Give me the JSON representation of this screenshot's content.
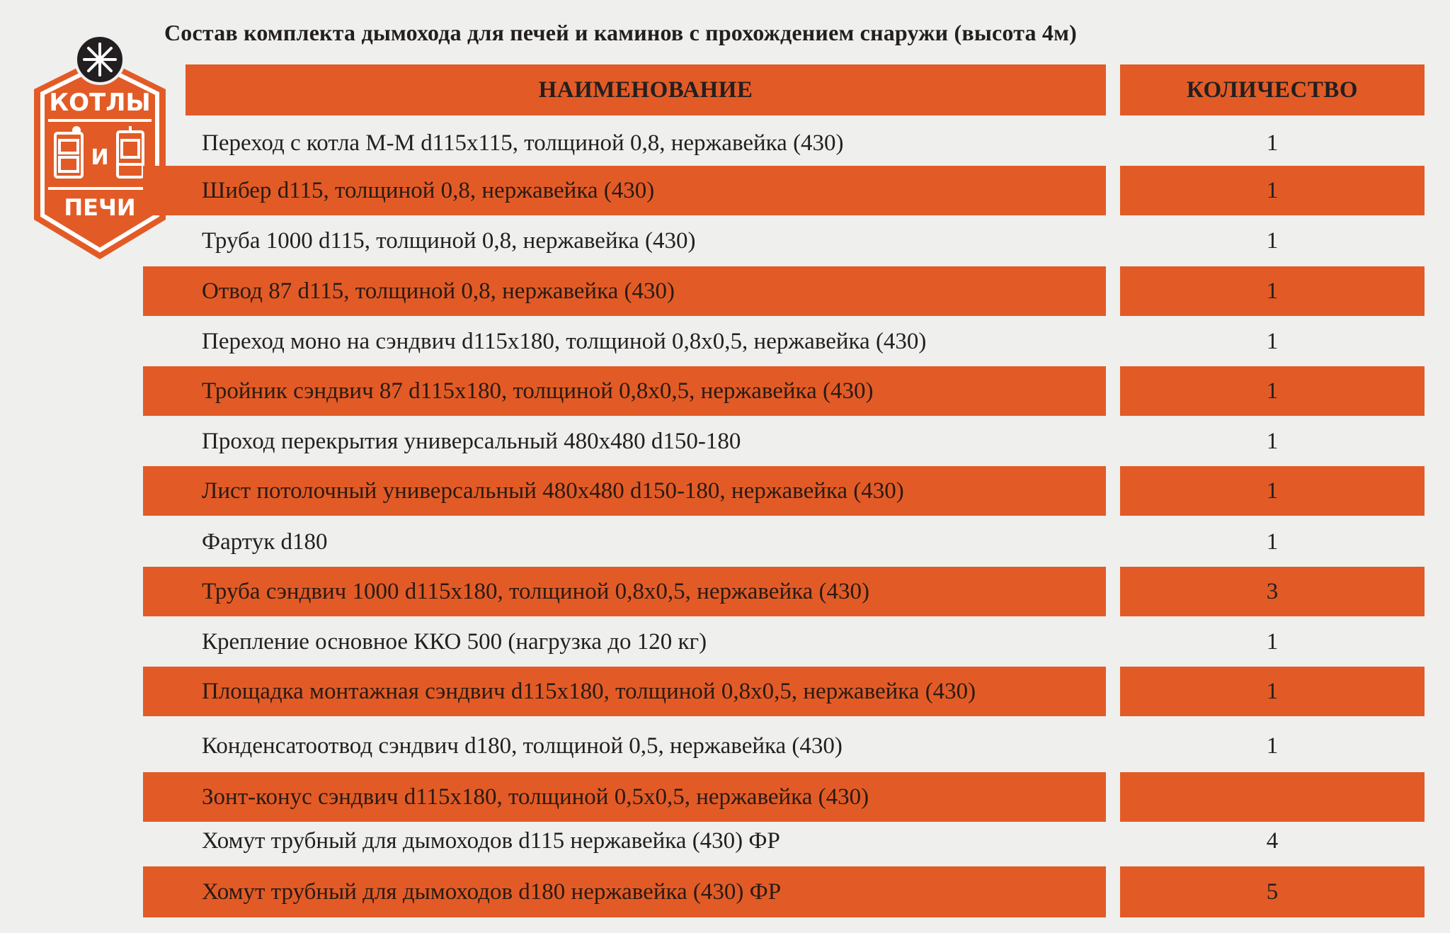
{
  "logo": {
    "top_text": "КОТЛЫ",
    "middle_text": "И",
    "bottom_text": "ПЕЧИ",
    "colors": {
      "border": "#e25b26",
      "inner": "#e8602a",
      "icon": "#ffffff",
      "badge": "#231f20"
    }
  },
  "title": "Состав комплекта дымохода для печей и каминов с прохождением снаружи (высота 4м)",
  "table": {
    "headers": {
      "name": "НАИМЕНОВАНИЕ",
      "qty": "КОЛИЧЕСТВО"
    },
    "rows": [
      {
        "name": "Переход с котла М-М d115х115, толщиной 0,8, нержавейка (430)",
        "qty": "1"
      },
      {
        "name": "Шибер d115, толщиной 0,8, нержавейка (430)",
        "qty": "1"
      },
      {
        "name": "Труба 1000 d115, толщиной 0,8, нержавейка (430)",
        "qty": "1"
      },
      {
        "name": "Отвод 87 d115, толщиной 0,8, нержавейка (430)",
        "qty": "1"
      },
      {
        "name": "Переход моно на сэндвич d115х180, толщиной 0,8х0,5, нержавейка (430)",
        "qty": "1"
      },
      {
        "name": "Тройник сэндвич 87 d115х180, толщиной 0,8х0,5, нержавейка (430)",
        "qty": "1"
      },
      {
        "name": "Проход перекрытия универсальный 480х480 d150-180",
        "qty": "1"
      },
      {
        "name": "Лист потолочный универсальный 480х480 d150-180, нержавейка (430)",
        "qty": "1"
      },
      {
        "name": "Фартук d180",
        "qty": "1"
      },
      {
        "name": "Труба сэндвич 1000 d115х180, толщиной 0,8х0,5, нержавейка (430)",
        "qty": "3"
      },
      {
        "name": "Крепление основное ККО 500 (нагрузка до 120 кг)",
        "qty": "1"
      },
      {
        "name": "Площадка монтажная сэндвич d115х180, толщиной 0,8х0,5, нержавейка (430)",
        "qty": "1"
      },
      {
        "name": "Конденсатоотвод сэндвич d180, толщиной 0,5, нержавейка (430)",
        "qty": "1"
      },
      {
        "name": "Зонт-конус сэндвич d115х180, толщиной 0,5х0,5, нержавейка (430)",
        "qty": ""
      },
      {
        "name": "Хомут трубный для дымоходов d115 нержавейка (430) ФР",
        "qty": "4"
      },
      {
        "name": "Хомут трубный для дымоходов d180  нержавейка (430) ФР",
        "qty": "5"
      }
    ]
  },
  "colors": {
    "accent": "#e25b26",
    "background": "#efefee",
    "text": "#231f20"
  }
}
